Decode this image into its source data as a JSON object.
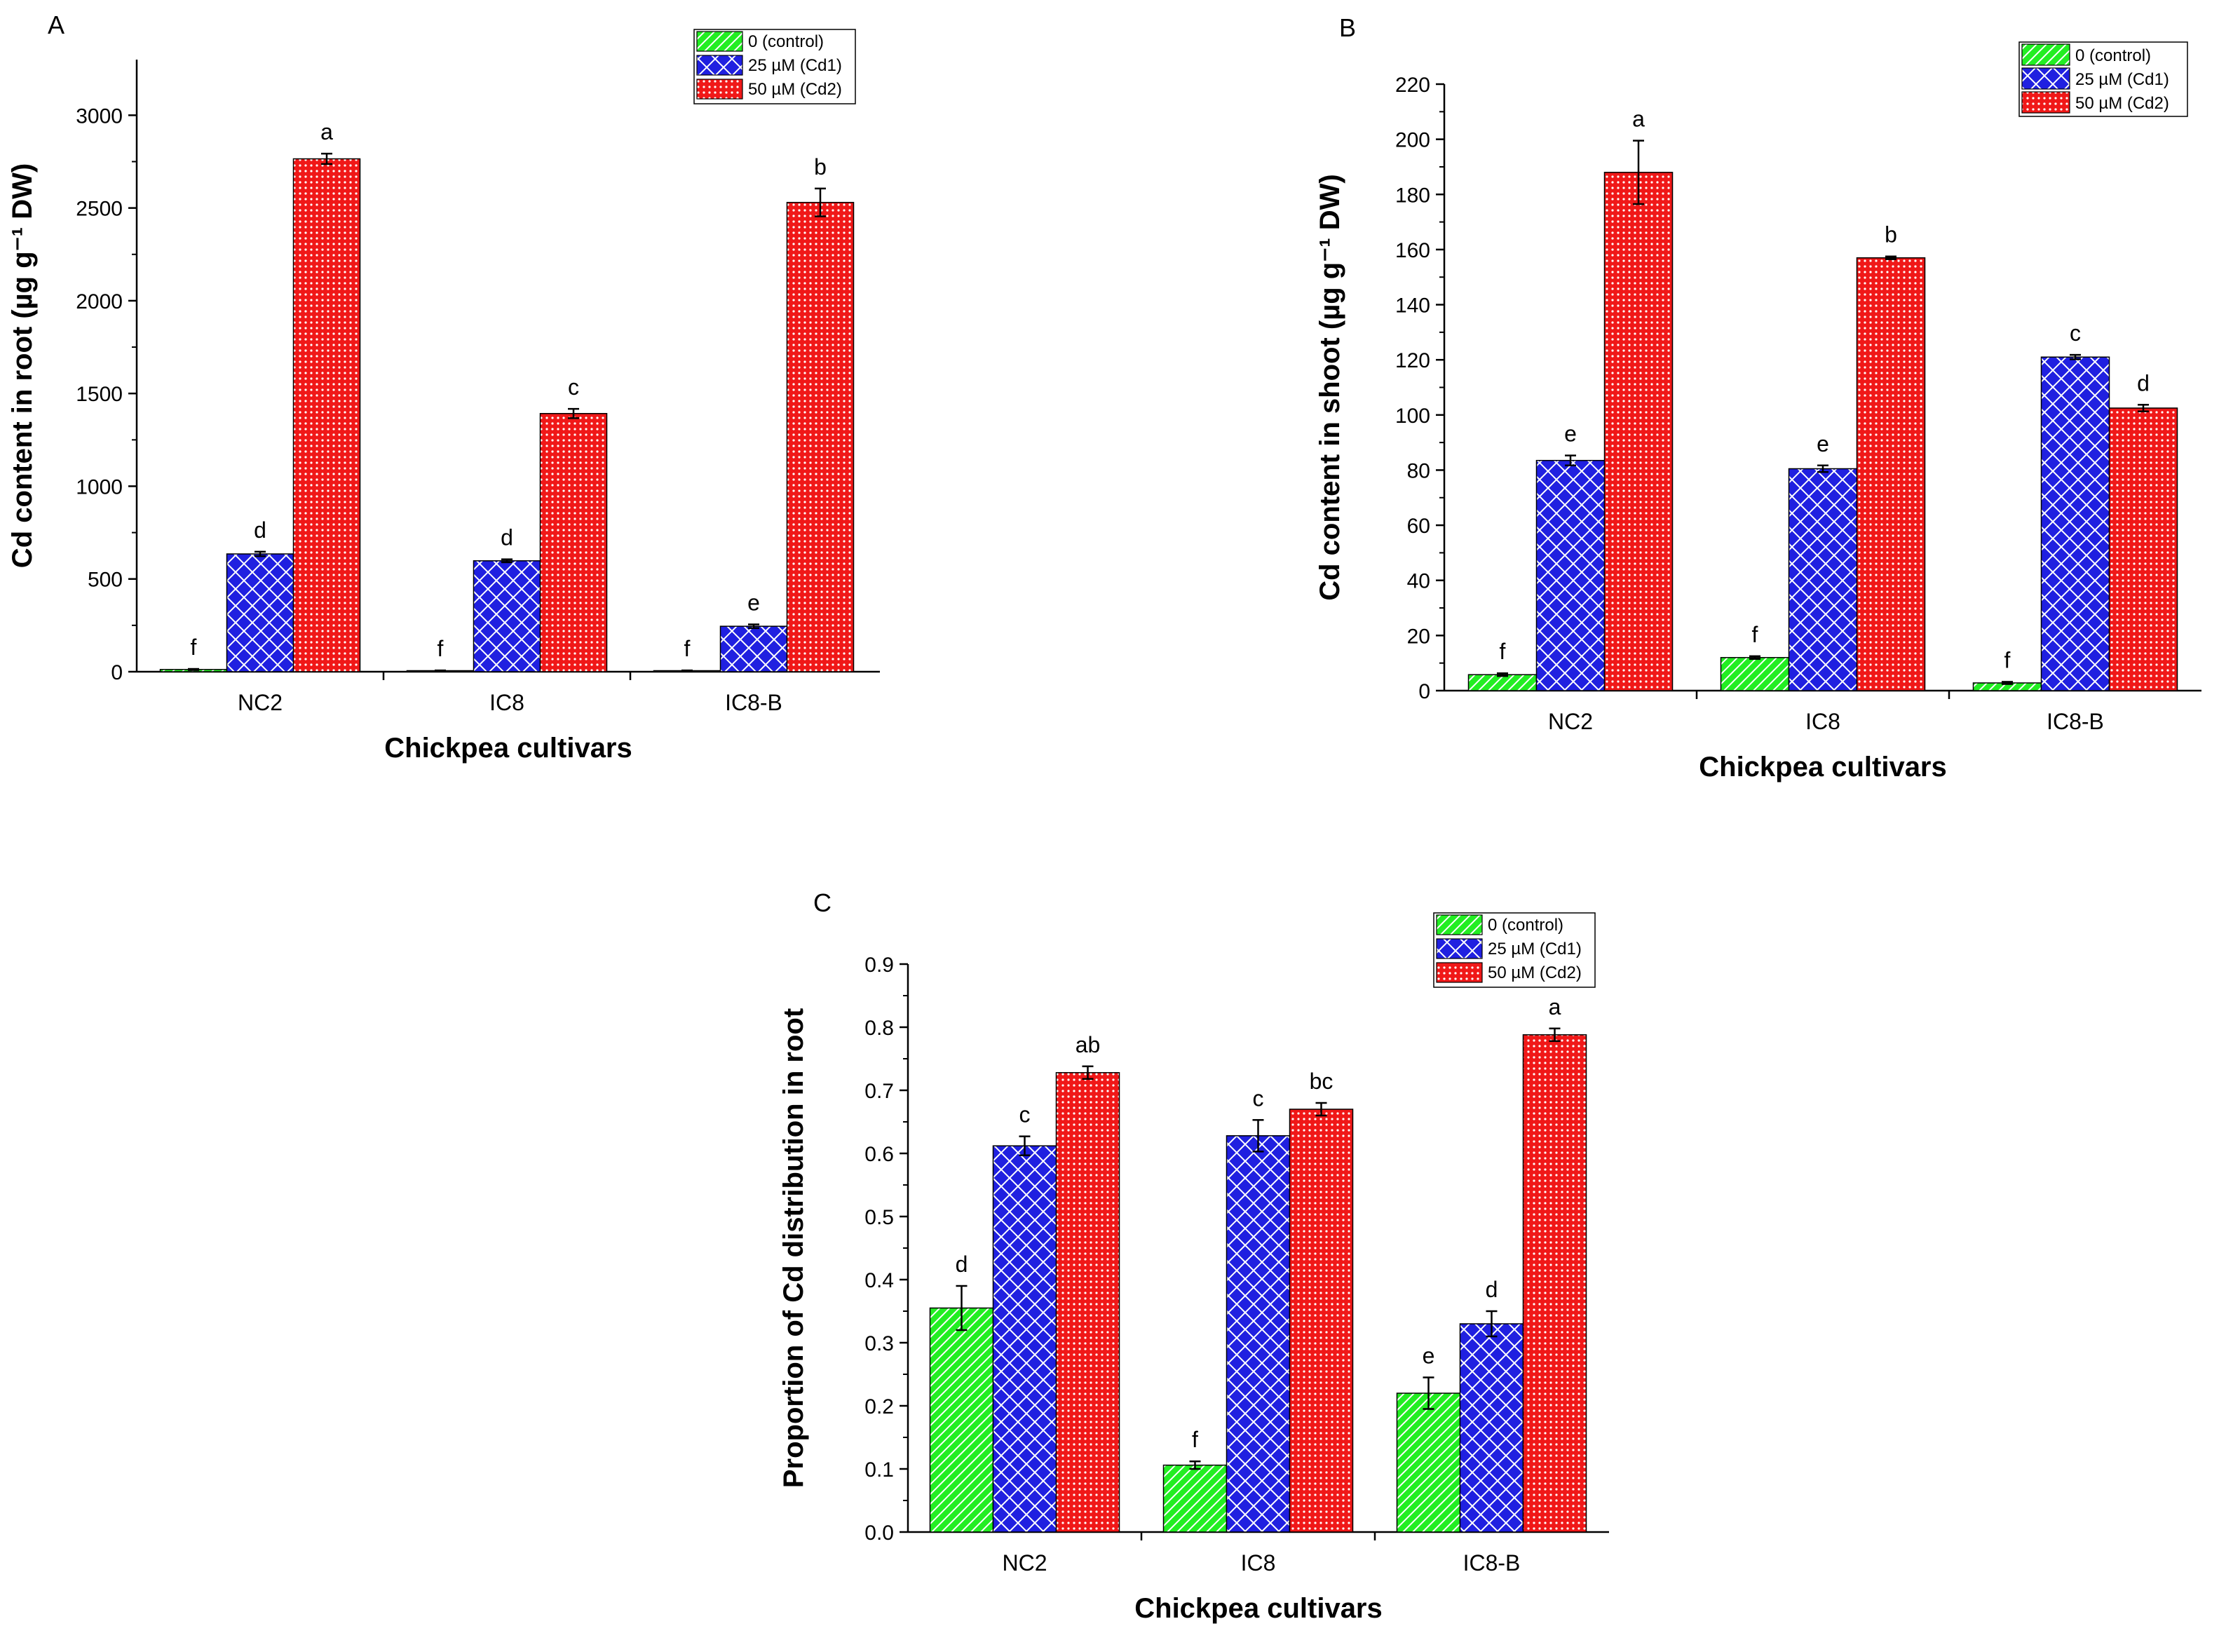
{
  "chart_data": [
    {
      "type": "bar",
      "panel": "A",
      "title": "",
      "xlabel": "Chickpea cultivars",
      "ylabel": "Cd content in root (µg g⁻¹ DW)",
      "categories": [
        "NC2",
        "IC8",
        "IC8-B"
      ],
      "ylim": [
        0,
        3300
      ],
      "yticks": [
        0,
        500,
        1000,
        1500,
        2000,
        2500,
        3000
      ],
      "tick_decimals": 0,
      "legend_position": "top-right",
      "series": [
        {
          "name": "0 (control)",
          "color": "#22ee22",
          "pattern": "hatch",
          "values": [
            12,
            5,
            5
          ],
          "errors": [
            3,
            2,
            2
          ],
          "letters": [
            "f",
            "f",
            "f"
          ]
        },
        {
          "name": "25 µM (Cd1)",
          "color": "#2020e0",
          "pattern": "crosshatch",
          "values": [
            635,
            598,
            245
          ],
          "errors": [
            12,
            8,
            10
          ],
          "letters": [
            "d",
            "d",
            "e"
          ]
        },
        {
          "name": "50 µM (Cd2)",
          "color": "#f01818",
          "pattern": "dots",
          "values": [
            2765,
            1392,
            2530
          ],
          "errors": [
            28,
            25,
            75
          ],
          "letters": [
            "a",
            "c",
            "b"
          ]
        }
      ]
    },
    {
      "type": "bar",
      "panel": "B",
      "title": "",
      "xlabel": "Chickpea cultivars",
      "ylabel": "Cd content in shoot (µg g⁻¹ DW)",
      "categories": [
        "NC2",
        "IC8",
        "IC8-B"
      ],
      "ylim": [
        0,
        220
      ],
      "yticks": [
        0,
        20,
        40,
        60,
        80,
        100,
        120,
        140,
        160,
        180,
        200,
        220
      ],
      "tick_decimals": 0,
      "legend_position": "top-right",
      "series": [
        {
          "name": "0 (control)",
          "color": "#22ee22",
          "pattern": "hatch",
          "values": [
            5.8,
            12,
            2.8
          ],
          "errors": [
            0.5,
            0.5,
            0.4
          ],
          "letters": [
            "f",
            "f",
            "f"
          ]
        },
        {
          "name": "25 µM (Cd1)",
          "color": "#2020e0",
          "pattern": "crosshatch",
          "values": [
            83.5,
            80.5,
            121
          ],
          "errors": [
            1.8,
            1.2,
            0.8
          ],
          "letters": [
            "e",
            "e",
            "c"
          ]
        },
        {
          "name": "50 µM (Cd2)",
          "color": "#f01818",
          "pattern": "dots",
          "values": [
            188,
            157,
            102.5
          ],
          "errors": [
            11.5,
            0.5,
            1.2
          ],
          "letters": [
            "a",
            "b",
            "d"
          ]
        }
      ]
    },
    {
      "type": "bar",
      "panel": "C",
      "title": "",
      "xlabel": "Chickpea cultivars",
      "ylabel": "Proportion of Cd distribution in root",
      "categories": [
        "NC2",
        "IC8",
        "IC8-B"
      ],
      "ylim": [
        0,
        0.9
      ],
      "yticks": [
        0.0,
        0.1,
        0.2,
        0.3,
        0.4,
        0.5,
        0.6,
        0.7,
        0.8,
        0.9
      ],
      "tick_decimals": 1,
      "legend_position": "top-right",
      "series": [
        {
          "name": "0 (control)",
          "color": "#22ee22",
          "pattern": "hatch",
          "values": [
            0.355,
            0.106,
            0.22
          ],
          "errors": [
            0.035,
            0.006,
            0.025
          ],
          "letters": [
            "d",
            "f",
            "e"
          ]
        },
        {
          "name": "25 µM (Cd1)",
          "color": "#2020e0",
          "pattern": "crosshatch",
          "values": [
            0.612,
            0.628,
            0.33
          ],
          "errors": [
            0.015,
            0.025,
            0.02
          ],
          "letters": [
            "c",
            "c",
            "d"
          ]
        },
        {
          "name": "50 µM (Cd2)",
          "color": "#f01818",
          "pattern": "dots",
          "values": [
            0.728,
            0.67,
            0.788
          ],
          "errors": [
            0.01,
            0.01,
            0.01
          ],
          "letters": [
            "ab",
            "bc",
            "a"
          ]
        }
      ]
    }
  ]
}
